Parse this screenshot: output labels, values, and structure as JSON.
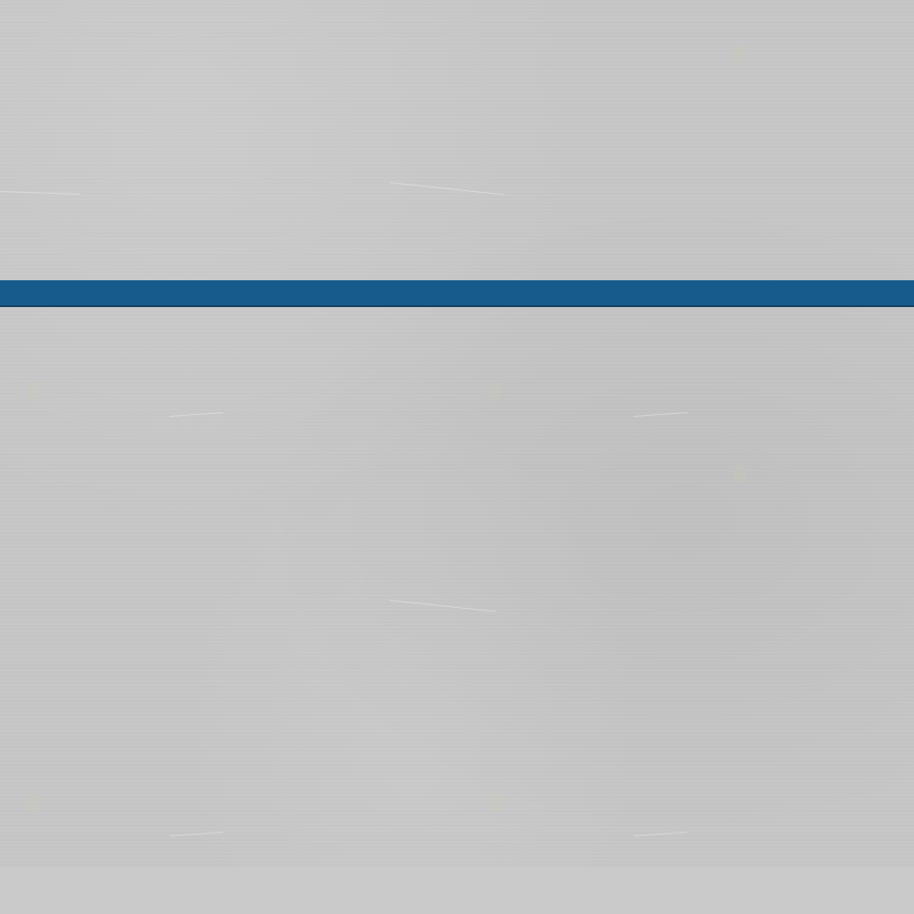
{
  "colors": {
    "surface": "#c6c6c6",
    "divider": "#175b8c",
    "footer": "#cacaca"
  }
}
